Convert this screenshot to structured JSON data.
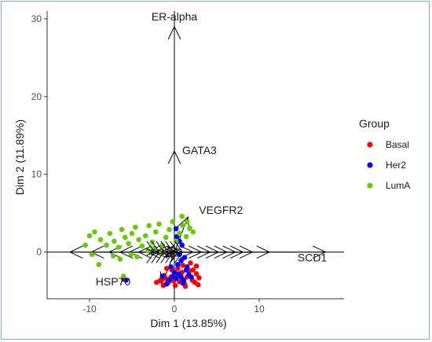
{
  "chart_data": {
    "type": "scatter",
    "title": "",
    "xlabel": "Dim 1 (13.85%)",
    "ylabel": "Dim 2 (11.89%)",
    "xlim": [
      -15,
      20
    ],
    "ylim": [
      -6,
      31
    ],
    "xticks": [
      -10,
      0,
      10
    ],
    "yticks": [
      0,
      10,
      20,
      30
    ],
    "grid": false,
    "legend": {
      "title": "Group",
      "position": "right",
      "entries": [
        {
          "name": "Basal",
          "color": "#ff0000"
        },
        {
          "name": "Her2",
          "color": "#0000ff"
        },
        {
          "name": "LumA",
          "color": "#66cc00"
        }
      ]
    },
    "variables": [
      {
        "label": "ER-alpha",
        "x": 0,
        "y": 29
      },
      {
        "label": "GATA3",
        "x": 0,
        "y": 13
      },
      {
        "label": "VEGFR2",
        "x": 1.6,
        "y": 4.5
      },
      {
        "label": "SCD1",
        "x": 17.8,
        "y": 0
      },
      {
        "label": "HSP70",
        "x": -1.5,
        "y": -4.3
      }
    ],
    "unlabeled_arrow_tips": [
      [
        -12.3,
        0
      ],
      [
        -9.8,
        0
      ],
      [
        -7.7,
        0
      ],
      [
        -6.4,
        0
      ],
      [
        -5.3,
        0
      ],
      [
        -4.2,
        0
      ],
      [
        -3.2,
        0
      ],
      [
        -2.3,
        0
      ],
      [
        -1.6,
        0
      ],
      [
        2.2,
        0
      ],
      [
        3.2,
        0
      ],
      [
        4.2,
        0
      ],
      [
        5.2,
        0
      ],
      [
        6.2,
        0
      ],
      [
        7.2,
        0
      ],
      [
        8.1,
        0
      ],
      [
        9.2,
        0
      ],
      [
        11.2,
        0
      ],
      [
        -1.0,
        -0.6
      ],
      [
        -0.8,
        0.7
      ]
    ],
    "series": [
      {
        "name": "Basal",
        "color": "#ff0000",
        "points": [
          [
            -6.0,
            -3.5
          ],
          [
            -2.1,
            -3.9
          ],
          [
            -1.7,
            -3.7
          ],
          [
            -1.5,
            -3.5
          ],
          [
            -1.2,
            -3.0
          ],
          [
            -1.0,
            -3.4
          ],
          [
            -0.7,
            -3.9
          ],
          [
            -0.4,
            -3.2
          ],
          [
            -0.1,
            -3.7
          ],
          [
            0.3,
            -3.1
          ],
          [
            0.6,
            -3.8
          ],
          [
            0.9,
            -2.6
          ],
          [
            1.2,
            -4.1
          ],
          [
            1.5,
            -3.2
          ],
          [
            1.8,
            -2.4
          ],
          [
            2.1,
            -3.6
          ],
          [
            2.4,
            -3.9
          ],
          [
            2.6,
            -2.8
          ],
          [
            2.9,
            -3.3
          ],
          [
            0.1,
            -4.3
          ],
          [
            -0.3,
            -2.3
          ],
          [
            1.0,
            -1.7
          ],
          [
            1.9,
            -1.4
          ],
          [
            2.6,
            -1.8
          ],
          [
            0.4,
            -2.1
          ],
          [
            -1.3,
            -4.3
          ],
          [
            2.8,
            -4.2
          ],
          [
            1.3,
            -4.4
          ],
          [
            -0.9,
            -2.1
          ],
          [
            2.2,
            -2.3
          ]
        ]
      },
      {
        "name": "Her2",
        "color": "#0000ff",
        "points": [
          [
            -5.7,
            -3.6
          ],
          [
            -1.4,
            -3.1
          ],
          [
            -0.9,
            -4.1
          ],
          [
            -0.6,
            -3.6
          ],
          [
            -0.2,
            -3.1
          ],
          [
            0.2,
            -3.4
          ],
          [
            0.5,
            -2.8
          ],
          [
            0.8,
            -3.2
          ],
          [
            1.1,
            -3.6
          ],
          [
            1.4,
            -2.3
          ],
          [
            1.7,
            -2.9
          ],
          [
            0.0,
            -2.6
          ],
          [
            0.4,
            -1.6
          ],
          [
            0.8,
            -1.1
          ],
          [
            1.2,
            -0.7
          ],
          [
            0.3,
            2.0
          ],
          [
            0.6,
            1.4
          ],
          [
            0.9,
            0.9
          ],
          [
            0.2,
            3.0
          ],
          [
            1.0,
            -4.0
          ],
          [
            -0.4,
            -1.9
          ],
          [
            0.6,
            -0.3
          ],
          [
            1.5,
            -1.9
          ],
          [
            2.0,
            -3.2
          ]
        ]
      },
      {
        "name": "LumA",
        "color": "#66cc00",
        "points": [
          [
            -10.0,
            2.1
          ],
          [
            -9.4,
            2.6
          ],
          [
            -8.7,
            1.6
          ],
          [
            -8.0,
            0.9
          ],
          [
            -7.6,
            2.4
          ],
          [
            -7.1,
            1.4
          ],
          [
            -6.6,
            0.6
          ],
          [
            -6.2,
            2.9
          ],
          [
            -5.8,
            1.9
          ],
          [
            -5.4,
            1.1
          ],
          [
            -5.0,
            2.4
          ],
          [
            -4.6,
            3.2
          ],
          [
            -4.2,
            1.6
          ],
          [
            -3.8,
            0.8
          ],
          [
            -3.4,
            2.1
          ],
          [
            -3.0,
            3.4
          ],
          [
            -2.6,
            1.3
          ],
          [
            -2.2,
            2.6
          ],
          [
            -1.8,
            3.6
          ],
          [
            -1.4,
            0.9
          ],
          [
            -1.0,
            1.9
          ],
          [
            -0.6,
            2.9
          ],
          [
            -0.2,
            3.9
          ],
          [
            0.2,
            1.4
          ],
          [
            0.6,
            2.4
          ],
          [
            1.0,
            3.4
          ],
          [
            1.4,
            2.0
          ],
          [
            1.8,
            3.1
          ],
          [
            0.9,
            4.6
          ],
          [
            -6.4,
            -0.9
          ],
          [
            -7.2,
            -0.5
          ],
          [
            -8.9,
            -1.6
          ],
          [
            -9.7,
            -0.3
          ],
          [
            -10.5,
            0.9
          ],
          [
            -6.0,
            -3.1
          ],
          [
            -4.4,
            -0.6
          ],
          [
            -3.1,
            0.2
          ],
          [
            -2.4,
            0.5
          ],
          [
            -1.6,
            -0.2
          ],
          [
            2.2,
            2.6
          ],
          [
            1.5,
            3.9
          ],
          [
            -5.1,
            -0.3
          ]
        ]
      }
    ]
  }
}
